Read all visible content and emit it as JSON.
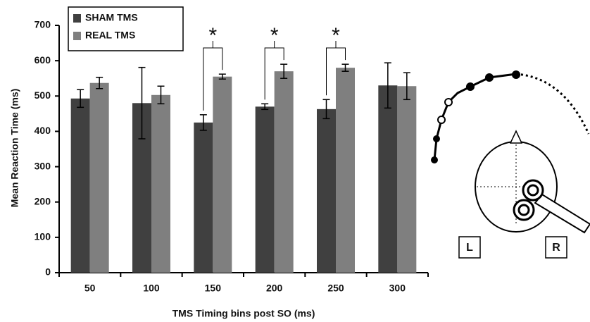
{
  "chart_data": {
    "type": "bar",
    "x_label": "TMS Timing bins post SO (ms)",
    "y_label": "Mean Reaction Time (ms)",
    "categories": [
      "50",
      "100",
      "150",
      "200",
      "250",
      "300"
    ],
    "series": [
      {
        "name": "SHAM TMS",
        "color": "#404040",
        "values": [
          493,
          480,
          425,
          470,
          463,
          530
        ],
        "errors": [
          25,
          101,
          22,
          8,
          27,
          64
        ]
      },
      {
        "name": "REAL TMS",
        "color": "#7f7f7f",
        "values": [
          537,
          503,
          555,
          570,
          580,
          528
        ],
        "errors": [
          16,
          25,
          7,
          20,
          10,
          38
        ]
      }
    ],
    "significance_labels": [
      null,
      null,
      "*",
      "*",
      "*",
      null
    ],
    "ylim": [
      0,
      700
    ],
    "yticks": [
      0,
      100,
      200,
      300,
      400,
      500,
      600,
      700
    ],
    "legend": "top-left"
  },
  "diagram": {
    "labels": [
      "L",
      "R"
    ]
  }
}
